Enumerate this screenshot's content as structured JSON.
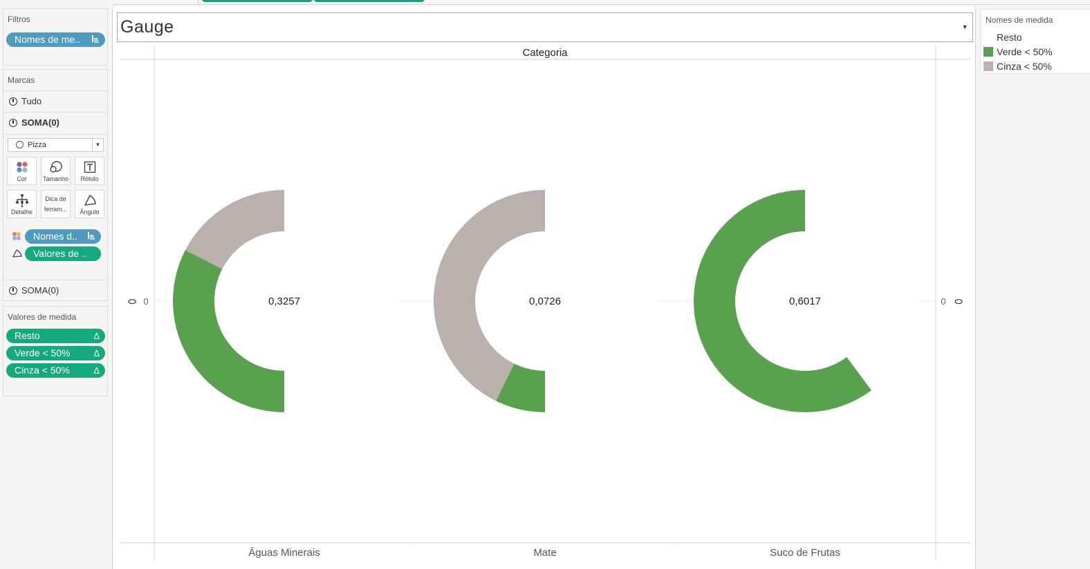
{
  "filters": {
    "title": "Filtros",
    "pill": "Nomes de me.."
  },
  "marks": {
    "title": "Marcas",
    "rows": [
      "Tudo",
      "SOMA(0)",
      "SOMA(0)"
    ],
    "mark_type": "Pizza",
    "buttons": {
      "color": "Cor",
      "size": "Tamanho",
      "label": "Rótulo",
      "detail": "Detalhe",
      "tooltip_line1": "Dica de",
      "tooltip_line2": "ferram...",
      "angle": "Ângulo"
    },
    "pills": {
      "color": "Nomes d..",
      "angle": "Valores de .."
    }
  },
  "measure_values": {
    "title": "Valores de medida",
    "pills": [
      "Resto",
      "Verde < 50%",
      "Cinza < 50%"
    ]
  },
  "parameter": {
    "value": "Gauge"
  },
  "legend": {
    "title": "Nomes de medida",
    "items": [
      {
        "label": "Resto",
        "color": "#ffffff"
      },
      {
        "label": "Verde < 50%",
        "color": "#59a14f"
      },
      {
        "label": "Cinza < 50%",
        "color": "#bab0ac"
      }
    ]
  },
  "chart_data": {
    "type": "pie",
    "column_header": "Categoria",
    "categories": [
      "Águas Minerais",
      "Mate",
      "Suco de Frutas"
    ],
    "labels": [
      "0,3257",
      "0,0726",
      "0,6017"
    ],
    "values": [
      0.3257,
      0.0726,
      0.6017
    ],
    "axis_tick": "0",
    "series": [
      {
        "name": "Verde < 50%",
        "color": "#59a14f",
        "values": [
          0.3257,
          0.0726,
          0.6017
        ]
      },
      {
        "name": "Cinza < 50%",
        "color": "#bab0ac",
        "values": [
          0.1743,
          0.4274,
          0
        ]
      }
    ]
  }
}
